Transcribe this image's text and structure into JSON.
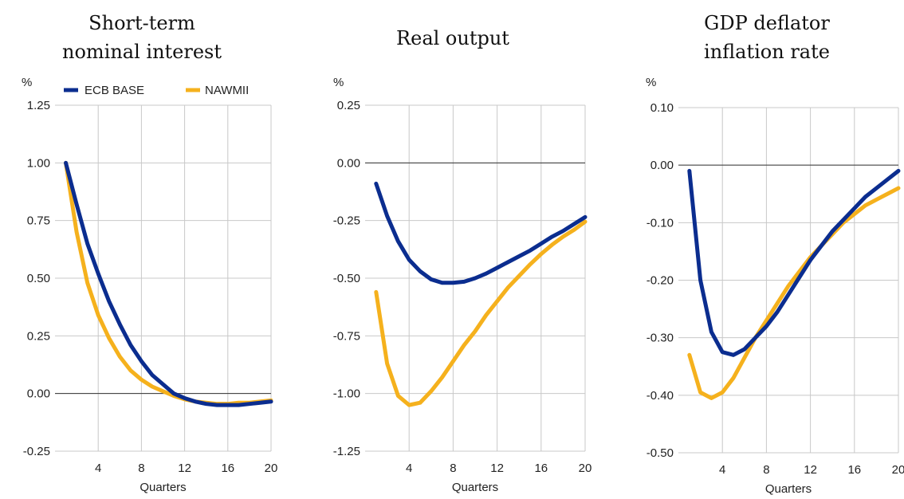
{
  "legend": [
    {
      "name": "ECB BASE",
      "color": "#0b2d8f"
    },
    {
      "name": "NAWMII",
      "color": "#f5b11d"
    }
  ],
  "chart_data": [
    {
      "type": "line",
      "title": [
        "Short-term",
        "nominal interest"
      ],
      "unit": "%",
      "xlabel": "Quarters",
      "xlim": [
        0,
        20
      ],
      "xticks": [
        4,
        8,
        12,
        16,
        20
      ],
      "ylim": [
        -0.25,
        1.25
      ],
      "yticks": [
        -0.25,
        0.0,
        0.25,
        0.5,
        0.75,
        1.0,
        1.25
      ],
      "ytick_labels": [
        "-0.25",
        "0.00",
        "0.25",
        "0.50",
        "0.75",
        "1.00",
        "1.25"
      ],
      "grid": true,
      "legend_position": "top",
      "x": [
        1,
        2,
        3,
        4,
        5,
        6,
        7,
        8,
        9,
        10,
        11,
        12,
        13,
        14,
        15,
        16,
        17,
        18,
        19,
        20
      ],
      "series": [
        {
          "name": "ECB BASE",
          "values": [
            1.0,
            0.82,
            0.65,
            0.52,
            0.4,
            0.3,
            0.21,
            0.14,
            0.08,
            0.04,
            0.0,
            -0.02,
            -0.035,
            -0.045,
            -0.05,
            -0.05,
            -0.05,
            -0.045,
            -0.04,
            -0.035
          ]
        },
        {
          "name": "NAWMII",
          "values": [
            1.0,
            0.7,
            0.48,
            0.34,
            0.24,
            0.16,
            0.1,
            0.06,
            0.03,
            0.01,
            -0.01,
            -0.025,
            -0.035,
            -0.04,
            -0.045,
            -0.045,
            -0.04,
            -0.04,
            -0.035,
            -0.03
          ]
        }
      ]
    },
    {
      "type": "line",
      "title": [
        "Real output"
      ],
      "unit": "%",
      "xlabel": "Quarters",
      "xlim": [
        0,
        20
      ],
      "xticks": [
        4,
        8,
        12,
        16,
        20
      ],
      "ylim": [
        -1.25,
        0.25
      ],
      "yticks": [
        -1.25,
        -1.0,
        -0.75,
        -0.5,
        -0.25,
        0.0,
        0.25
      ],
      "ytick_labels": [
        "-1.25",
        "-1.00",
        "-0.75",
        "-0.50",
        "-0.25",
        "0.00",
        "0.25"
      ],
      "grid": true,
      "x": [
        1,
        2,
        3,
        4,
        5,
        6,
        7,
        8,
        9,
        10,
        11,
        12,
        13,
        14,
        15,
        16,
        17,
        18,
        19,
        20
      ],
      "series": [
        {
          "name": "ECB BASE",
          "values": [
            -0.09,
            -0.23,
            -0.34,
            -0.42,
            -0.47,
            -0.505,
            -0.52,
            -0.52,
            -0.515,
            -0.5,
            -0.48,
            -0.455,
            -0.43,
            -0.405,
            -0.38,
            -0.35,
            -0.32,
            -0.295,
            -0.265,
            -0.235
          ]
        },
        {
          "name": "NAWMII",
          "values": [
            -0.56,
            -0.87,
            -1.01,
            -1.05,
            -1.04,
            -0.99,
            -0.93,
            -0.86,
            -0.79,
            -0.73,
            -0.66,
            -0.6,
            -0.54,
            -0.49,
            -0.44,
            -0.395,
            -0.355,
            -0.32,
            -0.29,
            -0.255
          ]
        }
      ]
    },
    {
      "type": "line",
      "title": [
        "GDP deflator",
        "inflation rate"
      ],
      "unit": "%",
      "xlabel": "Quarters",
      "xlim": [
        0,
        20
      ],
      "xticks": [
        4,
        8,
        12,
        16,
        20
      ],
      "ylim": [
        -0.5,
        0.1
      ],
      "yticks": [
        -0.5,
        -0.4,
        -0.3,
        -0.2,
        -0.1,
        0.0,
        0.1
      ],
      "ytick_labels": [
        "-0.50",
        "-0.40",
        "-0.30",
        "-0.20",
        "-0.10",
        "0.00",
        "0.10"
      ],
      "grid": true,
      "x": [
        1,
        2,
        3,
        4,
        5,
        6,
        7,
        8,
        9,
        10,
        11,
        12,
        13,
        14,
        15,
        16,
        17,
        18,
        19,
        20
      ],
      "series": [
        {
          "name": "ECB BASE",
          "values": [
            -0.01,
            -0.2,
            -0.29,
            -0.325,
            -0.33,
            -0.32,
            -0.3,
            -0.28,
            -0.255,
            -0.225,
            -0.195,
            -0.165,
            -0.14,
            -0.115,
            -0.095,
            -0.075,
            -0.055,
            -0.04,
            -0.025,
            -0.01
          ]
        },
        {
          "name": "NAWMII",
          "values": [
            -0.33,
            -0.395,
            -0.405,
            -0.395,
            -0.37,
            -0.335,
            -0.3,
            -0.27,
            -0.24,
            -0.21,
            -0.185,
            -0.16,
            -0.14,
            -0.12,
            -0.1,
            -0.085,
            -0.07,
            -0.06,
            -0.05,
            -0.04
          ]
        }
      ]
    }
  ]
}
